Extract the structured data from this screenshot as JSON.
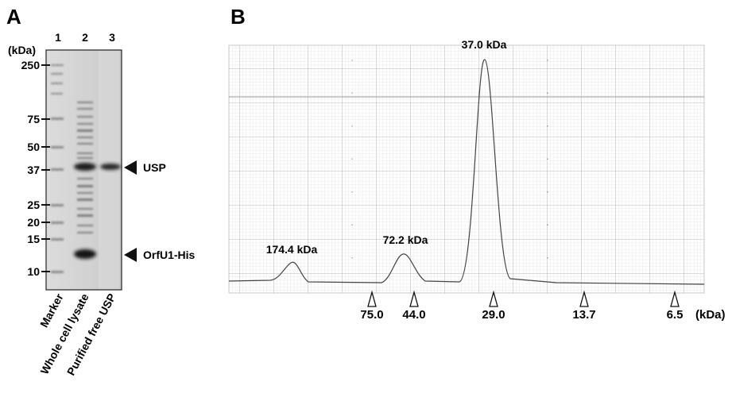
{
  "panel_a": {
    "letter": "A",
    "unit": "(kDa)",
    "lane_numbers": [
      "1",
      "2",
      "3"
    ],
    "marker_ticks": [
      "250",
      "75",
      "50",
      "37",
      "25",
      "20",
      "15",
      "10"
    ],
    "lane_names": [
      "Marker",
      "Whole cell lysate",
      "Purified free USP"
    ],
    "arrow_labels": [
      "USP",
      "OrfU1-His"
    ]
  },
  "panel_b": {
    "letter": "B",
    "peak_labels": [
      "174.4 kDa",
      "72.2 kDa",
      "37.0 kDa"
    ],
    "standard_labels": [
      "75.0",
      "44.0",
      "29.0",
      "13.7",
      "6.5"
    ],
    "unit": "(kDa)"
  },
  "chart_data": {
    "type": "line",
    "title": "",
    "xlabel": "",
    "ylabel": "",
    "grid": true,
    "peaks": [
      {
        "label": "174.4 kDa",
        "relative_height": 0.09
      },
      {
        "label": "72.2 kDa",
        "relative_height": 0.12
      },
      {
        "label": "37.0 kDa",
        "relative_height": 1.0
      }
    ],
    "standards_kDa": [
      75.0,
      44.0,
      29.0,
      13.7,
      6.5
    ]
  }
}
